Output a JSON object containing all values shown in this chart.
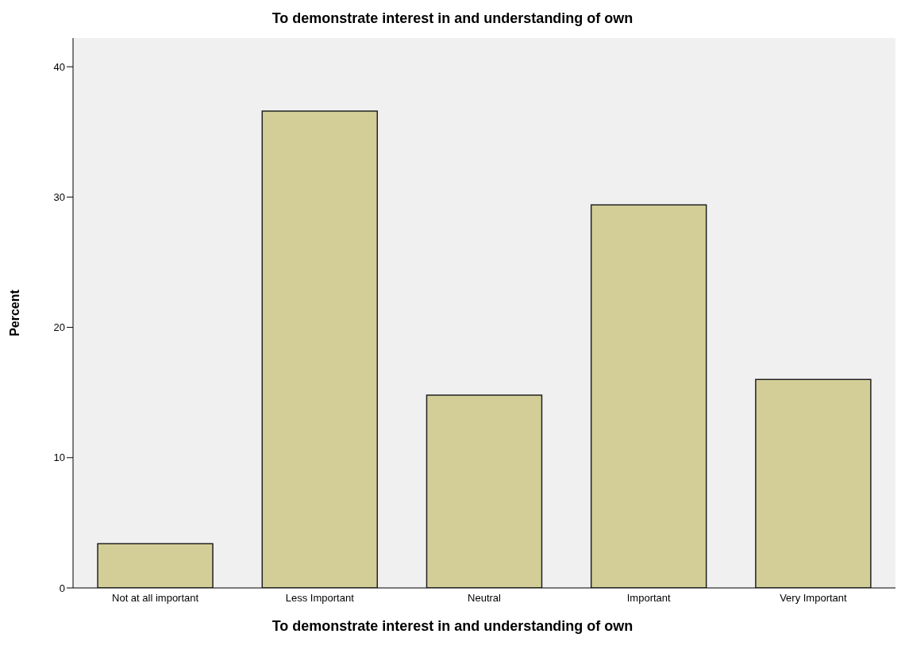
{
  "chart_data": {
    "type": "bar",
    "title": "To demonstrate interest in and understanding of own",
    "xlabel": "To demonstrate interest in and understanding of own",
    "ylabel": "Percent",
    "categories": [
      "Not at all important",
      "Less Important",
      "Neutral",
      "Important",
      "Very Important"
    ],
    "values": [
      3.4,
      36.6,
      14.8,
      29.4,
      16.0
    ],
    "color": "#d3ce97",
    "ylim": [
      0,
      42.2
    ],
    "yticks": [
      0,
      10,
      20,
      30,
      40
    ],
    "grid": false
  }
}
